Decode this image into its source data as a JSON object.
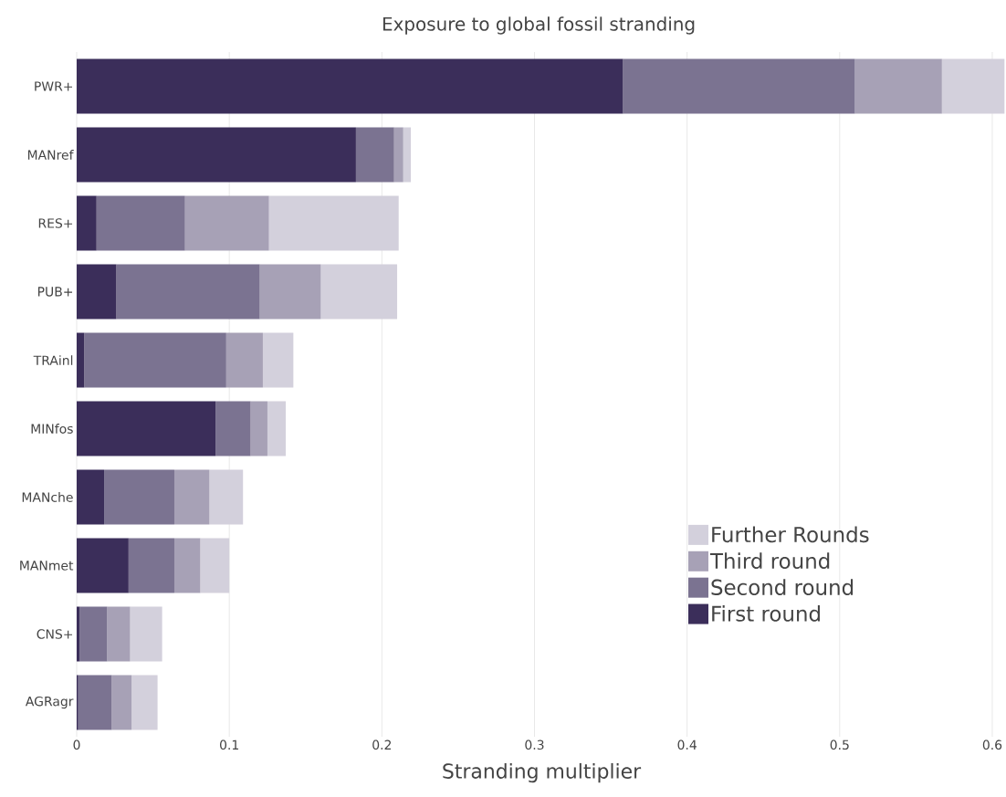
{
  "chart_data": {
    "type": "bar",
    "orientation": "horizontal",
    "stacked": true,
    "title": "Exposure to global fossil stranding",
    "xlabel": "Stranding multiplier",
    "categories": [
      "PWR+",
      "MANref",
      "RES+",
      "PUB+",
      "TRAinl",
      "MINfos",
      "MANche",
      "MANmet",
      "CNS+",
      "AGRagr"
    ],
    "series": [
      {
        "name": "First round",
        "color": "#3b2e5a",
        "values": [
          0.358,
          0.183,
          0.013,
          0.026,
          0.005,
          0.091,
          0.018,
          0.034,
          0.002,
          0.001
        ]
      },
      {
        "name": "Second round",
        "color": "#7b7391",
        "values": [
          0.152,
          0.025,
          0.058,
          0.094,
          0.093,
          0.023,
          0.046,
          0.03,
          0.018,
          0.022
        ]
      },
      {
        "name": "Third round",
        "color": "#a7a1b6",
        "values": [
          0.057,
          0.006,
          0.055,
          0.04,
          0.024,
          0.011,
          0.023,
          0.017,
          0.015,
          0.013
        ]
      },
      {
        "name": "Further Rounds",
        "color": "#d3d0dc",
        "values": [
          0.041,
          0.005,
          0.085,
          0.05,
          0.02,
          0.012,
          0.022,
          0.019,
          0.021,
          0.017
        ]
      }
    ],
    "xlim": [
      0,
      0.609
    ],
    "xticks": [
      0,
      0.1,
      0.2,
      0.3,
      0.4,
      0.5,
      0.6
    ],
    "grid": "x",
    "legend": "bottom right"
  }
}
